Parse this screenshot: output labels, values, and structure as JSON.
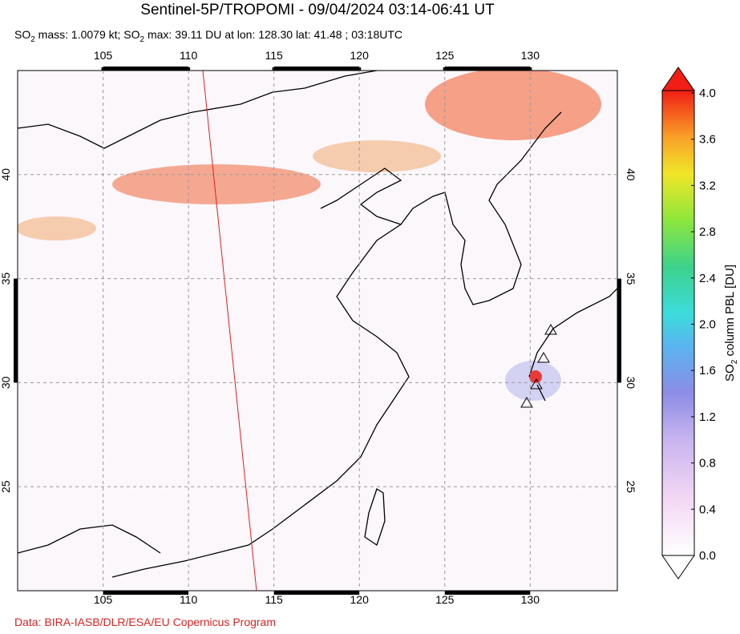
{
  "title": "Sentinel-5P/TROPOMI - 09/04/2024 03:14-06:41 UT",
  "subtitle": [
    "SO",
    "2",
    " mass: 1.0079 kt; SO",
    "2",
    " max: 39.11 DU at lon: 128.30 lat: 41.48 ; 03:18UTC"
  ],
  "map": {
    "lonlim": [
      100,
      135.1
    ],
    "latlim": [
      20,
      45
    ],
    "lonticks": [
      105,
      110,
      115,
      120,
      125,
      130
    ],
    "latticks": [
      25,
      30,
      35,
      40
    ]
  },
  "colorbar": {
    "label": [
      "SO",
      "2",
      " column PBL [DU]"
    ],
    "lim": [
      0,
      4
    ],
    "ticks": [
      {
        "value": 0,
        "label": "0.0"
      },
      {
        "value": 0.4,
        "label": "0.4"
      },
      {
        "value": 0.8,
        "label": "0.8"
      },
      {
        "value": 1.2,
        "label": "1.2"
      },
      {
        "value": 1.6,
        "label": "1.6"
      },
      {
        "value": 2.0,
        "label": "2.0"
      },
      {
        "value": 2.4,
        "label": "2.4"
      },
      {
        "value": 2.8,
        "label": "2.8"
      },
      {
        "value": 3.2,
        "label": "3.2"
      },
      {
        "value": 3.6,
        "label": "3.6"
      },
      {
        "value": 4.0,
        "label": "4.0"
      }
    ]
  },
  "credit": "Data: BIRA-IASB/DLR/ESA/EU Copernicus Program"
}
